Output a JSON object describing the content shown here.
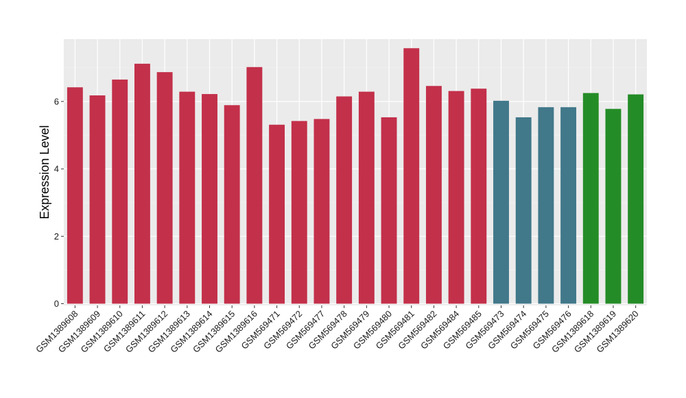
{
  "chart_data": {
    "type": "bar",
    "title": "",
    "xlabel": "",
    "ylabel": "Expression Level",
    "ylim": [
      -0.05,
      7.85
    ],
    "yticks": [
      0,
      2,
      4,
      6
    ],
    "grid": true,
    "legend": "none",
    "background": "#ebebeb",
    "categories": [
      "GSM1389608",
      "GSM1389609",
      "GSM1389610",
      "GSM1389611",
      "GSM1389612",
      "GSM1389613",
      "GSM1389614",
      "GSM1389615",
      "GSM1389616",
      "GSM569471",
      "GSM569472",
      "GSM569477",
      "GSM569478",
      "GSM569479",
      "GSM569480",
      "GSM569481",
      "GSM569482",
      "GSM569484",
      "GSM569485",
      "GSM569473",
      "GSM569474",
      "GSM569475",
      "GSM569476",
      "GSM1389618",
      "GSM1389619",
      "GSM1389620"
    ],
    "values": [
      6.42,
      6.18,
      6.65,
      7.12,
      6.87,
      6.29,
      6.22,
      5.89,
      7.02,
      5.31,
      5.42,
      5.48,
      6.15,
      6.29,
      5.53,
      7.58,
      6.46,
      6.31,
      6.38,
      6.02,
      5.53,
      5.83,
      5.83,
      6.25,
      5.78,
      6.21
    ],
    "bar_colors": [
      "#c3304a",
      "#c3304a",
      "#c3304a",
      "#c3304a",
      "#c3304a",
      "#c3304a",
      "#c3304a",
      "#c3304a",
      "#c3304a",
      "#c3304a",
      "#c3304a",
      "#c3304a",
      "#c3304a",
      "#c3304a",
      "#c3304a",
      "#c3304a",
      "#c3304a",
      "#c3304a",
      "#c3304a",
      "#41788a",
      "#41788a",
      "#41788a",
      "#41788a",
      "#248c27",
      "#248c27",
      "#248c27"
    ]
  }
}
